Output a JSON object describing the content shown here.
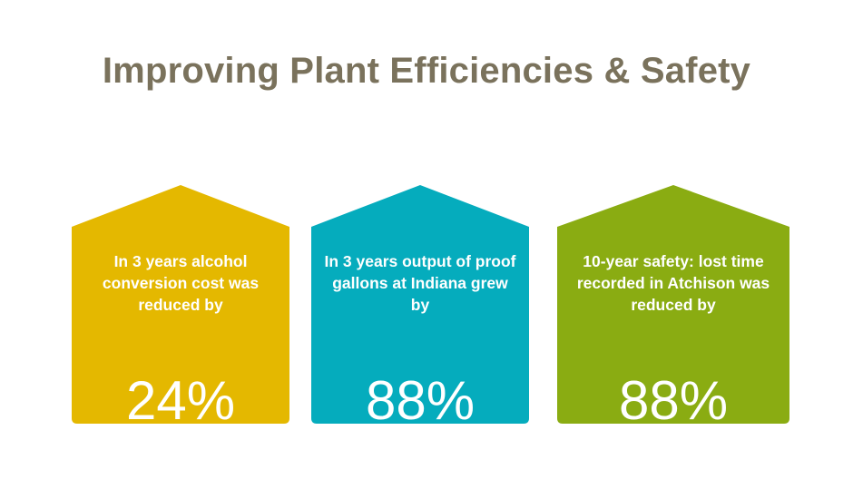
{
  "slide": {
    "title": "Improving Plant Efficiencies & Safety"
  },
  "cards": [
    {
      "text": "In 3 years alcohol conversion cost was reduced by",
      "value": "24%",
      "color": "#e4b800"
    },
    {
      "text": "In 3 years output of proof gallons at Indiana grew by",
      "value": "88%",
      "color": "#05acbd"
    },
    {
      "text": "10-year safety: lost time recorded in Atchison was reduced by",
      "value": "88%",
      "color": "#8aac12"
    }
  ]
}
